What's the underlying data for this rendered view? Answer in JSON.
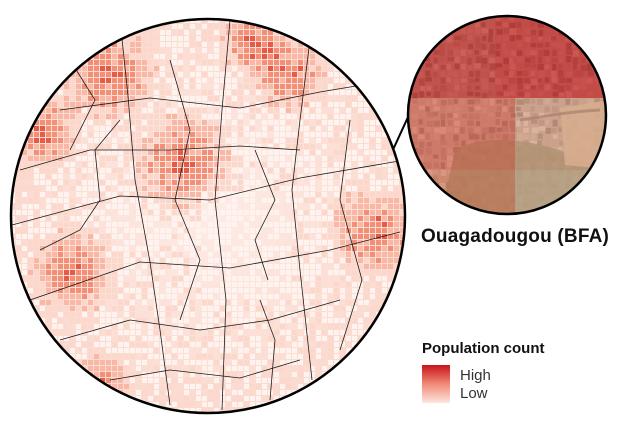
{
  "map": {
    "city_label": "Ouagadougou (BFA)"
  },
  "legend": {
    "title": "Population count",
    "high_label": "High",
    "low_label": "Low",
    "high_color": "#c8141c",
    "mid_color": "#f08a76",
    "low_color": "#fde6df"
  },
  "colors": {
    "circle_stroke": "#000000",
    "road_stroke": "#1a1a1a",
    "density_palette": [
      "#fff3ef",
      "#fcd8cc",
      "#f9b8a6",
      "#f48f77",
      "#e85a45",
      "#c8141c"
    ]
  }
}
